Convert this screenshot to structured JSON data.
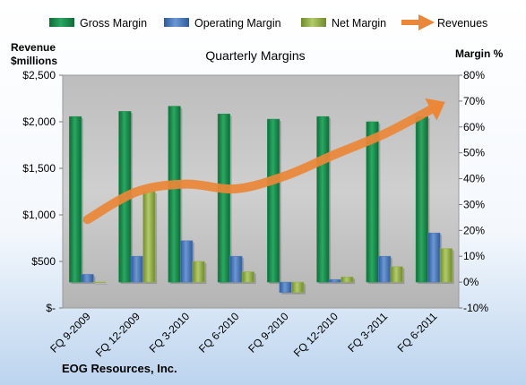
{
  "colors": {
    "gross_margin": "#1e8f4e",
    "operating_margin": "#4f7ec2",
    "net_margin": "#94b24b",
    "revenues": "#ec8737",
    "plot_background": "#c3c3c3"
  },
  "chart_data": {
    "type": "bar",
    "title": "Quarterly Margins",
    "footer": "EOG Resources, Inc.",
    "y_left_label_line1": "Revenue",
    "y_left_label_line2": "$millions",
    "y_right_label": "Margin %",
    "categories": [
      "FQ 9-2009",
      "FQ 12-2009",
      "FQ 3-2010",
      "FQ 6-2010",
      "FQ 9-2010",
      "FQ 12-2010",
      "FQ 3-2011",
      "FQ 6-2011"
    ],
    "left_axis": {
      "ylim": [
        0,
        2500
      ],
      "ticks": [
        0,
        500,
        1000,
        1500,
        2000,
        2500
      ],
      "tick_labels": [
        "$-",
        "$500",
        "$1,000",
        "$1,500",
        "$2,000",
        "$2,500"
      ]
    },
    "right_axis": {
      "ylim": [
        -10,
        80
      ],
      "ticks": [
        -10,
        0,
        10,
        20,
        30,
        40,
        50,
        60,
        70,
        80
      ],
      "tick_labels": [
        "-10%",
        "0%",
        "10%",
        "20%",
        "30%",
        "40%",
        "50%",
        "60%",
        "70%",
        "80%"
      ]
    },
    "legend_placement": "top",
    "grid": false,
    "series": [
      {
        "name": "Gross Margin",
        "type": "bar",
        "axis": "right",
        "values": [
          64,
          66,
          68,
          65,
          63,
          64,
          62,
          64
        ]
      },
      {
        "name": "Operating Margin",
        "type": "bar",
        "axis": "right",
        "values": [
          3,
          10,
          16,
          10,
          -4,
          1,
          10,
          19
        ]
      },
      {
        "name": "Net Margin",
        "type": "bar",
        "axis": "right",
        "values": [
          0,
          35,
          8,
          4,
          -4,
          2,
          6,
          13
        ]
      },
      {
        "name": "Revenues",
        "type": "line",
        "axis": "left",
        "values": [
          950,
          1250,
          1330,
          1280,
          1420,
          1650,
          1870,
          2150
        ]
      }
    ]
  }
}
